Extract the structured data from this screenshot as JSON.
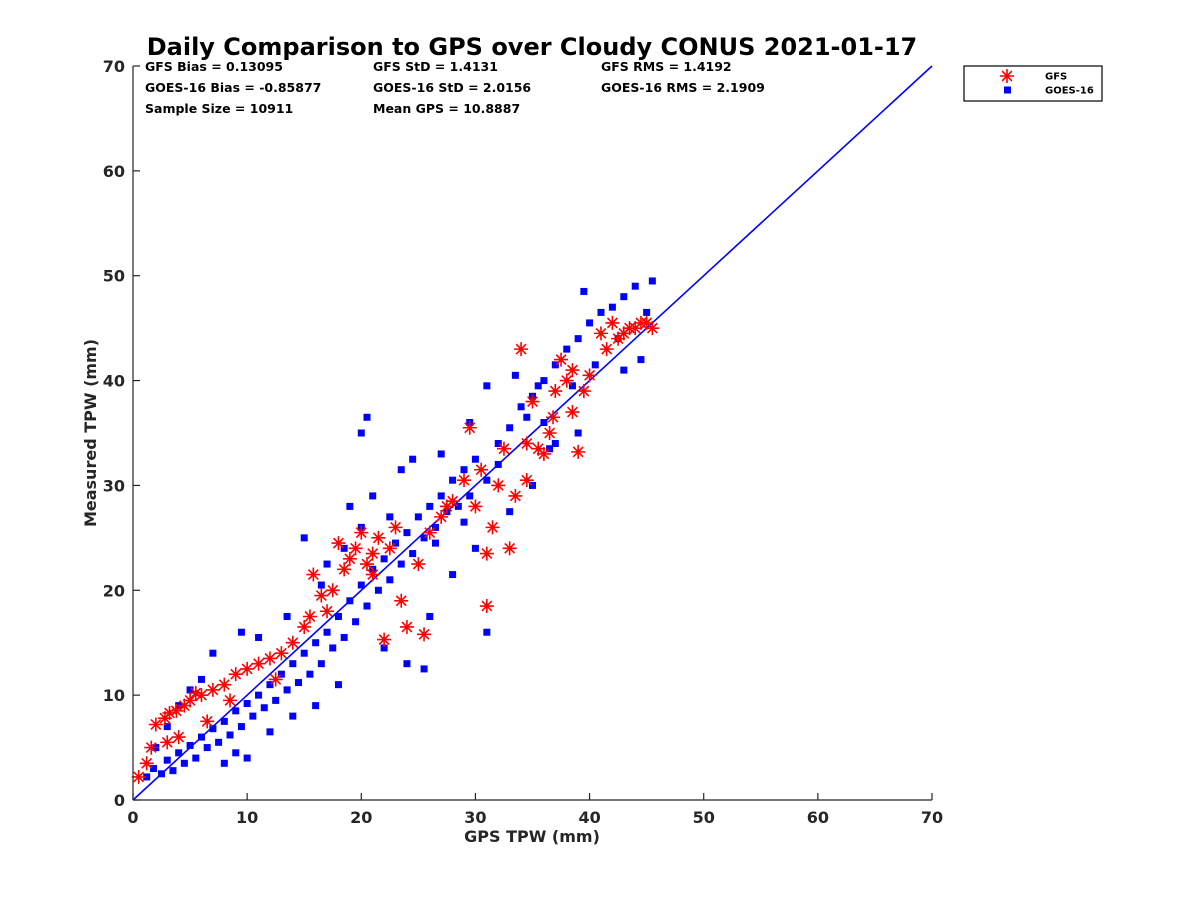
{
  "chart_data": {
    "type": "scatter",
    "title": "Daily Comparison to GPS over Cloudy CONUS 2021-01-17",
    "xlabel": "GPS TPW (mm)",
    "ylabel": "Measured TPW (mm)",
    "xlim": [
      0,
      70
    ],
    "ylim": [
      0,
      70
    ],
    "xticks": [
      "0",
      "10",
      "20",
      "30",
      "40",
      "50",
      "60",
      "70"
    ],
    "yticks": [
      "0",
      "10",
      "20",
      "30",
      "40",
      "50",
      "60",
      "70"
    ],
    "grid": false,
    "legend": {
      "position": "outside-top-right",
      "entries": [
        {
          "label": "GFS",
          "color": "#ff0000",
          "marker": "asterisk"
        },
        {
          "label": "GOES-16",
          "color": "#0000ff",
          "marker": "square"
        }
      ]
    },
    "stats": [
      [
        "GFS Bias = 0.13095",
        "GFS StD = 1.4131",
        "GFS RMS = 1.4192"
      ],
      [
        "GOES-16 Bias = -0.85877",
        "GOES-16 StD = 2.0156",
        "GOES-16 RMS = 2.1909"
      ],
      [
        "Sample Size = 10911",
        "Mean GPS = 10.8887",
        ""
      ]
    ],
    "reference_line": {
      "x": [
        0,
        70
      ],
      "y": [
        0,
        70
      ],
      "color": "#0000ff"
    },
    "series": [
      {
        "name": "GOES-16",
        "color": "#0000ff",
        "marker": "square",
        "points": [
          [
            1.2,
            2.2
          ],
          [
            1.8,
            3.0
          ],
          [
            2.5,
            2.5
          ],
          [
            3.0,
            3.8
          ],
          [
            3.5,
            2.8
          ],
          [
            4.0,
            4.5
          ],
          [
            4.5,
            3.5
          ],
          [
            5.0,
            5.2
          ],
          [
            5.5,
            4.0
          ],
          [
            6.0,
            6.0
          ],
          [
            6.5,
            5.0
          ],
          [
            7.0,
            6.8
          ],
          [
            7.5,
            5.5
          ],
          [
            8.0,
            7.5
          ],
          [
            8.5,
            6.2
          ],
          [
            9.0,
            8.5
          ],
          [
            9.5,
            7.0
          ],
          [
            10.0,
            9.2
          ],
          [
            10.5,
            8.0
          ],
          [
            11.0,
            10.0
          ],
          [
            11.5,
            8.8
          ],
          [
            12.0,
            11.0
          ],
          [
            12.5,
            9.5
          ],
          [
            13.0,
            12.0
          ],
          [
            13.5,
            10.5
          ],
          [
            14.0,
            13.0
          ],
          [
            14.5,
            11.2
          ],
          [
            15.0,
            14.0
          ],
          [
            15.5,
            12.0
          ],
          [
            16.0,
            15.0
          ],
          [
            16.5,
            13.0
          ],
          [
            17.0,
            16.0
          ],
          [
            17.5,
            14.5
          ],
          [
            18.0,
            17.5
          ],
          [
            18.5,
            15.5
          ],
          [
            19.0,
            19.0
          ],
          [
            19.5,
            17.0
          ],
          [
            20.0,
            20.5
          ],
          [
            20.5,
            18.5
          ],
          [
            21.0,
            22.0
          ],
          [
            21.5,
            20.0
          ],
          [
            22.0,
            23.0
          ],
          [
            22.5,
            21.0
          ],
          [
            23.0,
            24.5
          ],
          [
            23.5,
            22.5
          ],
          [
            24.0,
            25.5
          ],
          [
            24.5,
            23.5
          ],
          [
            25.0,
            27.0
          ],
          [
            25.5,
            25.0
          ],
          [
            26.0,
            28.0
          ],
          [
            26.5,
            26.0
          ],
          [
            27.0,
            29.0
          ],
          [
            27.5,
            27.5
          ],
          [
            28.0,
            30.5
          ],
          [
            28.5,
            28.0
          ],
          [
            29.0,
            31.5
          ],
          [
            29.5,
            29.0
          ],
          [
            30.0,
            32.5
          ],
          [
            31.0,
            30.5
          ],
          [
            32.0,
            34.0
          ],
          [
            33.0,
            35.5
          ],
          [
            34.0,
            37.5
          ],
          [
            35.0,
            38.5
          ],
          [
            36.0,
            40.0
          ],
          [
            37.0,
            41.5
          ],
          [
            38.0,
            43.0
          ],
          [
            39.0,
            44.0
          ],
          [
            40.0,
            45.5
          ],
          [
            41.0,
            46.5
          ],
          [
            42.0,
            47.0
          ],
          [
            43.0,
            48.0
          ],
          [
            44.0,
            49.0
          ],
          [
            45.5,
            49.5
          ],
          [
            39.5,
            48.5
          ],
          [
            20.5,
            36.5
          ],
          [
            20.0,
            35.0
          ],
          [
            15.0,
            25.0
          ],
          [
            31.0,
            16.0
          ],
          [
            25.5,
            12.5
          ],
          [
            24.0,
            13.0
          ],
          [
            9.0,
            4.5
          ],
          [
            8.0,
            3.5
          ],
          [
            10.0,
            4.0
          ],
          [
            12.0,
            6.5
          ],
          [
            14.0,
            8.0
          ],
          [
            16.0,
            9.0
          ],
          [
            18.0,
            11.0
          ],
          [
            22.0,
            14.5
          ],
          [
            26.0,
            17.5
          ],
          [
            28.0,
            21.5
          ],
          [
            30.0,
            24.0
          ],
          [
            33.0,
            27.5
          ],
          [
            35.0,
            30.0
          ],
          [
            37.0,
            34.0
          ],
          [
            39.0,
            35.0
          ],
          [
            43.0,
            41.0
          ],
          [
            44.5,
            42.0
          ],
          [
            31.0,
            39.5
          ],
          [
            29.5,
            36.0
          ],
          [
            23.5,
            31.5
          ],
          [
            24.5,
            32.5
          ],
          [
            21.0,
            29.0
          ],
          [
            19.0,
            28.0
          ],
          [
            17.0,
            22.5
          ],
          [
            13.5,
            17.5
          ],
          [
            11.0,
            15.5
          ],
          [
            9.5,
            16.0
          ],
          [
            7.0,
            14.0
          ],
          [
            6.0,
            11.5
          ],
          [
            5.0,
            10.5
          ],
          [
            4.0,
            9.0
          ],
          [
            3.0,
            7.0
          ],
          [
            2.0,
            5.0
          ],
          [
            36.5,
            33.5
          ],
          [
            38.5,
            39.5
          ],
          [
            27.0,
            33.0
          ],
          [
            22.5,
            27.0
          ],
          [
            20.0,
            26.0
          ],
          [
            16.5,
            20.5
          ],
          [
            18.5,
            24.0
          ],
          [
            26.5,
            24.5
          ],
          [
            29.0,
            26.5
          ],
          [
            32.0,
            32.0
          ],
          [
            34.5,
            36.5
          ],
          [
            36.0,
            36.0
          ],
          [
            40.5,
            41.5
          ],
          [
            42.5,
            44.0
          ],
          [
            45.0,
            46.5
          ],
          [
            35.5,
            39.5
          ],
          [
            33.5,
            40.5
          ]
        ]
      },
      {
        "name": "GFS",
        "color": "#ff0000",
        "marker": "asterisk",
        "points": [
          [
            0.5,
            2.2
          ],
          [
            1.2,
            3.5
          ],
          [
            1.6,
            5.0
          ],
          [
            2.0,
            7.2
          ],
          [
            2.8,
            7.8
          ],
          [
            3.2,
            8.3
          ],
          [
            3.8,
            8.5
          ],
          [
            4.5,
            9.0
          ],
          [
            5.0,
            9.5
          ],
          [
            5.5,
            10.2
          ],
          [
            6.0,
            10.0
          ],
          [
            7.0,
            10.5
          ],
          [
            8.0,
            11.0
          ],
          [
            9.0,
            12.0
          ],
          [
            10.0,
            12.5
          ],
          [
            11.0,
            13.0
          ],
          [
            12.0,
            13.5
          ],
          [
            13.0,
            14.0
          ],
          [
            14.0,
            15.0
          ],
          [
            15.0,
            16.5
          ],
          [
            15.5,
            17.5
          ],
          [
            15.8,
            21.5
          ],
          [
            16.5,
            19.5
          ],
          [
            17.5,
            20.0
          ],
          [
            18.0,
            24.5
          ],
          [
            18.5,
            22.0
          ],
          [
            19.0,
            23.0
          ],
          [
            19.5,
            24.0
          ],
          [
            20.0,
            25.5
          ],
          [
            20.5,
            22.5
          ],
          [
            21.0,
            23.5
          ],
          [
            21.5,
            25.0
          ],
          [
            22.0,
            15.3
          ],
          [
            22.5,
            24.0
          ],
          [
            23.0,
            26.0
          ],
          [
            24.0,
            16.5
          ],
          [
            25.0,
            22.5
          ],
          [
            25.5,
            15.8
          ],
          [
            26.0,
            25.5
          ],
          [
            27.0,
            27.0
          ],
          [
            28.0,
            28.5
          ],
          [
            29.0,
            30.5
          ],
          [
            29.5,
            35.5
          ],
          [
            30.0,
            28.0
          ],
          [
            31.0,
            23.5
          ],
          [
            31.5,
            26.0
          ],
          [
            31.0,
            18.5
          ],
          [
            32.0,
            30.0
          ],
          [
            33.0,
            24.0
          ],
          [
            33.5,
            29.0
          ],
          [
            34.0,
            43.0
          ],
          [
            34.5,
            30.5
          ],
          [
            35.0,
            38.0
          ],
          [
            35.5,
            33.5
          ],
          [
            36.0,
            33.0
          ],
          [
            36.5,
            35.0
          ],
          [
            37.0,
            39.0
          ],
          [
            37.5,
            42.0
          ],
          [
            38.0,
            40.0
          ],
          [
            38.5,
            37.0
          ],
          [
            39.0,
            33.2
          ],
          [
            39.5,
            39.0
          ],
          [
            41.0,
            44.5
          ],
          [
            41.5,
            43.0
          ],
          [
            42.0,
            45.5
          ],
          [
            42.5,
            44.0
          ],
          [
            43.0,
            44.5
          ],
          [
            43.5,
            45.0
          ],
          [
            44.0,
            45.0
          ],
          [
            44.5,
            45.5
          ],
          [
            45.0,
            45.5
          ],
          [
            45.5,
            45.0
          ],
          [
            23.5,
            19.0
          ],
          [
            21.0,
            21.5
          ],
          [
            17.0,
            18.0
          ],
          [
            12.5,
            11.5
          ],
          [
            8.5,
            9.5
          ],
          [
            6.5,
            7.5
          ],
          [
            4.0,
            6.0
          ],
          [
            3.0,
            5.5
          ],
          [
            27.5,
            28.0
          ],
          [
            30.5,
            31.5
          ],
          [
            32.5,
            33.5
          ],
          [
            34.5,
            34.0
          ],
          [
            36.8,
            36.5
          ],
          [
            38.5,
            41.0
          ],
          [
            40.0,
            40.5
          ]
        ]
      }
    ]
  }
}
